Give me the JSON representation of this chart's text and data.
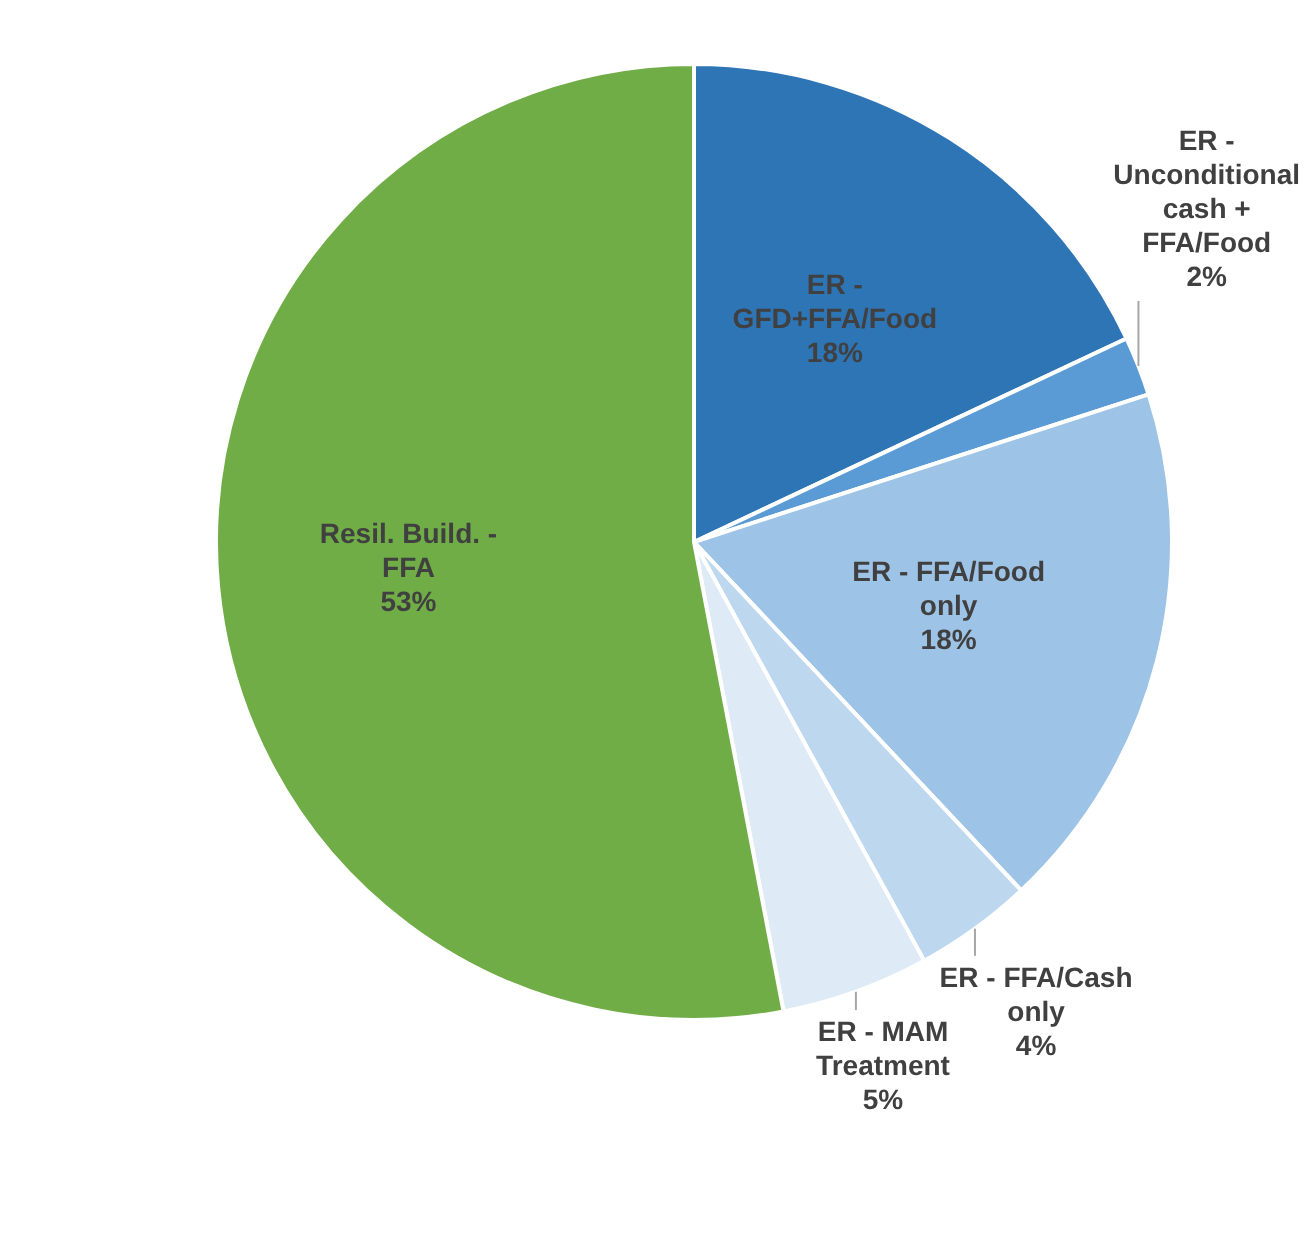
{
  "chart_data": {
    "type": "pie",
    "categories": [
      "ER - GFD+FFA/Food",
      "ER - Unconditional cash + FFA/Food",
      "ER - FFA/Food only",
      "ER - FFA/Cash only",
      "ER - MAM Treatment",
      "Resil. Build. - FFA"
    ],
    "values": [
      18,
      2,
      18,
      4,
      5,
      53
    ],
    "colors": [
      "#2e75b6",
      "#5b9bd5",
      "#9dc3e6",
      "#bdd7ee",
      "#deebf7",
      "#70ad47"
    ],
    "value_labels": [
      "18%",
      "2%",
      "18%",
      "4%",
      "5%",
      "53%"
    ],
    "legend": false
  }
}
